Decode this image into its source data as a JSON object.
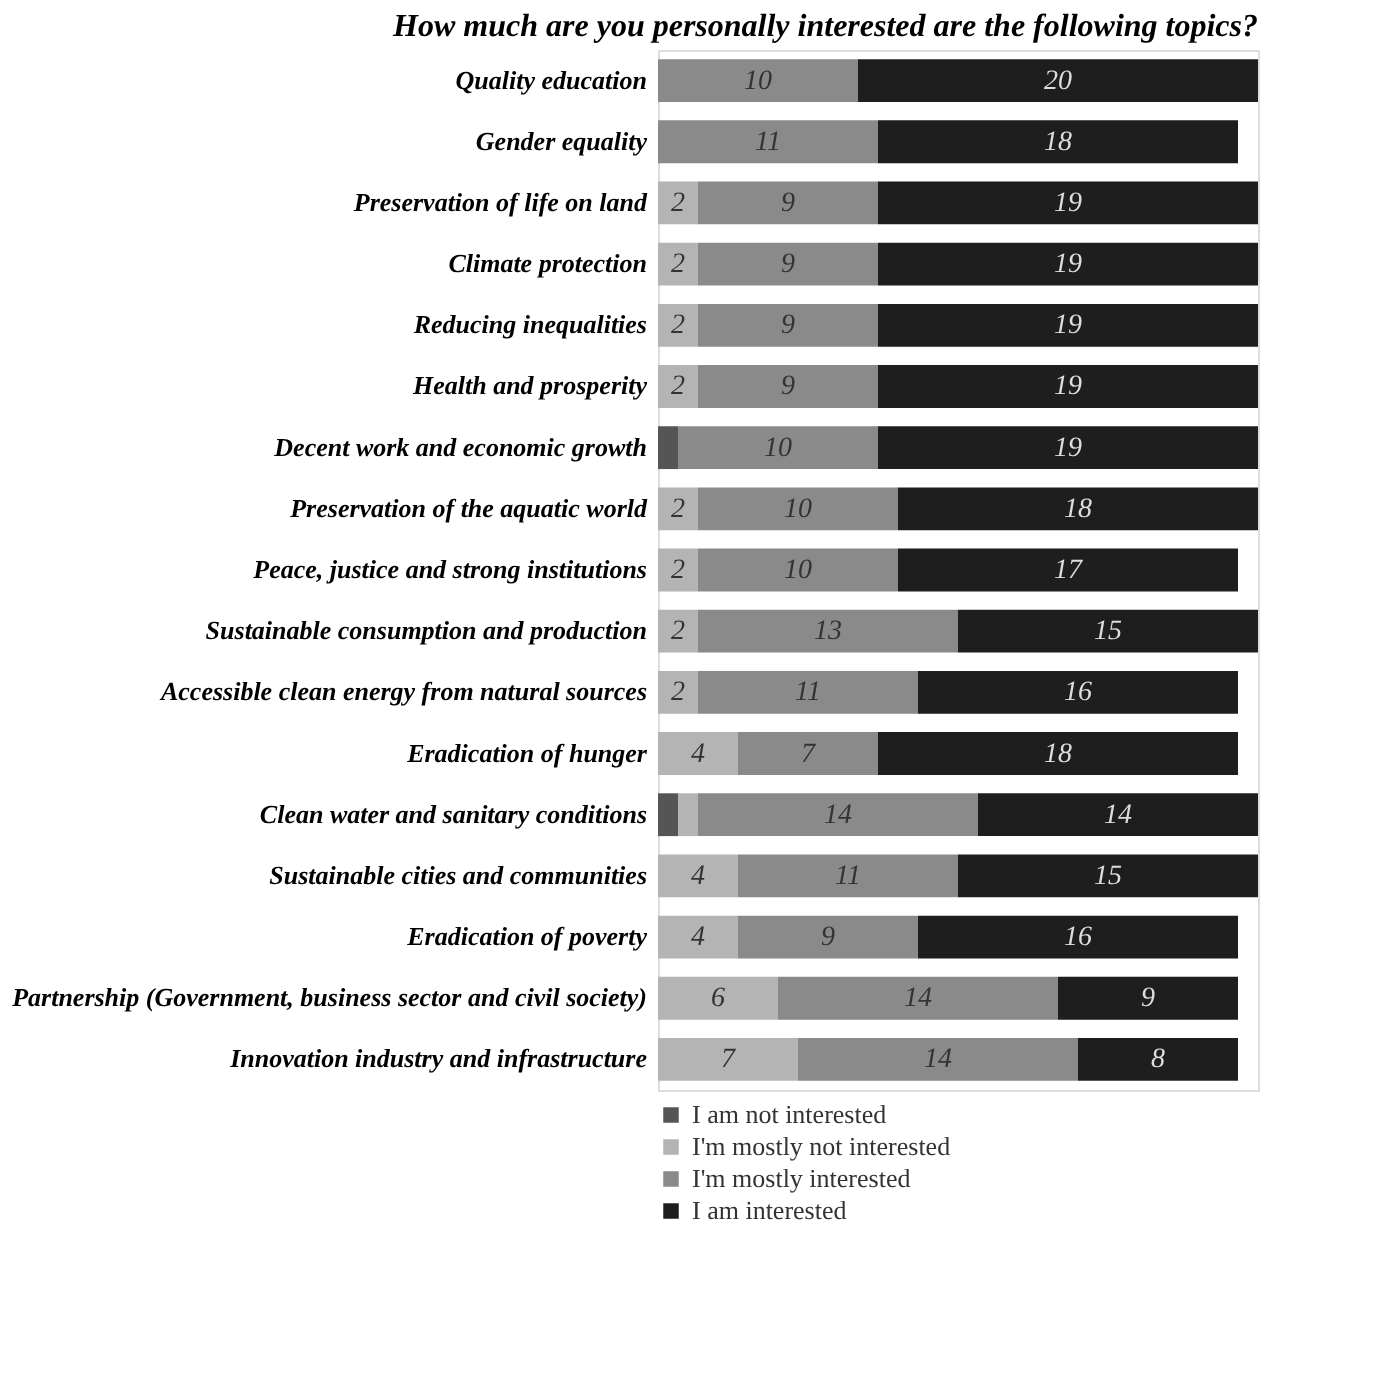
{
  "chart_data": {
    "type": "bar",
    "orientation": "horizontal",
    "stacked": true,
    "title": "How much are you personally interested are the following topics?",
    "categories": [
      "Quality education",
      "Gender equality",
      "Preservation of life on land",
      "Climate protection",
      "Reducing inequalities",
      "Health and prosperity",
      "Decent work and economic growth",
      "Preservation of the aquatic world",
      "Peace, justice and strong institutions",
      "Sustainable consumption and production",
      "Accessible clean energy from natural sources",
      "Eradication of hunger",
      "Clean water and sanitary conditions",
      "Sustainable cities and communities",
      "Eradication of poverty",
      "Partnership (Government, business sector and civil society)",
      "Innovation industry and infrastructure"
    ],
    "series": [
      {
        "name": "I am not interested",
        "color": "#555555",
        "values": [
          null,
          null,
          null,
          null,
          null,
          null,
          1,
          null,
          null,
          null,
          null,
          null,
          1,
          null,
          null,
          null,
          null
        ],
        "value_labels": [
          null,
          null,
          null,
          null,
          null,
          null,
          null,
          null,
          null,
          null,
          null,
          null,
          null,
          null,
          null,
          null,
          null
        ]
      },
      {
        "name": "I'm mostly not interested",
        "color": "#b4b4b4",
        "values": [
          null,
          null,
          2,
          2,
          2,
          2,
          null,
          2,
          2,
          2,
          2,
          4,
          1,
          4,
          4,
          6,
          7
        ],
        "value_labels": [
          null,
          null,
          "2",
          "2",
          "2",
          "2",
          null,
          "2",
          "2",
          "2",
          "2",
          "4",
          null,
          "4",
          "4",
          "6",
          "7"
        ]
      },
      {
        "name": "I'm mostly interested",
        "color": "#8a8a8a",
        "values": [
          10,
          11,
          9,
          9,
          9,
          9,
          10,
          10,
          10,
          13,
          11,
          7,
          14,
          11,
          9,
          14,
          14
        ],
        "value_labels": [
          "10",
          "11",
          "9",
          "9",
          "9",
          "9",
          "10",
          "10",
          "10",
          "13",
          "11",
          "7",
          "14",
          "11",
          "9",
          "14",
          "14"
        ]
      },
      {
        "name": "I am interested",
        "color": "#1e1e1e",
        "values": [
          20,
          18,
          19,
          19,
          19,
          19,
          19,
          18,
          17,
          15,
          16,
          18,
          14,
          15,
          16,
          9,
          8
        ],
        "value_labels": [
          "20",
          "18",
          "19",
          "19",
          "19",
          "19",
          "19",
          "18",
          "17",
          "15",
          "16",
          "18",
          "14",
          "15",
          "16",
          "9",
          "8"
        ]
      }
    ],
    "legend": "bottom"
  }
}
